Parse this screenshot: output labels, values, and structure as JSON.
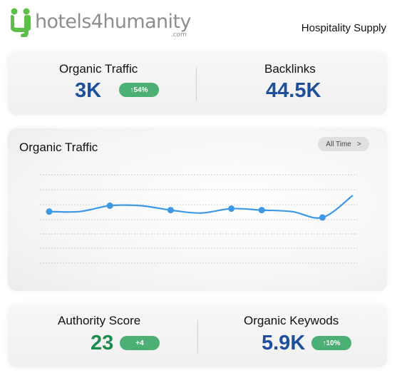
{
  "brand": {
    "logo_text": "hotels4humanity",
    "logo_suffix": ".com",
    "segment": "Hospitality Supply"
  },
  "metrics_top": {
    "organic_traffic": {
      "label": "Organic Traffic",
      "value": "3K",
      "badge": "↑54%"
    },
    "backlinks": {
      "label": "Backlinks",
      "value": "44.5K"
    }
  },
  "chart": {
    "title": "Organic Traffic",
    "range_button": "All Time",
    "range_chevron": ">",
    "line_color": "#3d98e6"
  },
  "chart_data": {
    "type": "line",
    "title": "Organic Traffic",
    "xlabel": "",
    "ylabel": "",
    "grid": true,
    "ylim": [
      0,
      6
    ],
    "x": [
      0,
      1,
      2,
      3,
      4,
      5,
      6,
      7,
      8,
      9,
      10
    ],
    "series": [
      {
        "values": [
          3.5,
          3.5,
          3.9,
          3.9,
          3.6,
          3.4,
          3.7,
          3.6,
          3.5,
          3.1,
          4.6
        ],
        "markers": [
          true,
          false,
          true,
          false,
          true,
          false,
          true,
          true,
          false,
          true,
          false
        ]
      }
    ]
  },
  "metrics_bottom": {
    "authority_score": {
      "label": "Authority Score",
      "value": "23",
      "badge": "+4"
    },
    "organic_keywords": {
      "label": "Organic Keywods",
      "value": "5.9K",
      "badge": "↑10%"
    }
  },
  "colors": {
    "blue_value": "#1e4f9c",
    "green_value": "#1f8a4c",
    "badge_bg": "#4caf73",
    "logo_green": "#5cbf4a"
  }
}
